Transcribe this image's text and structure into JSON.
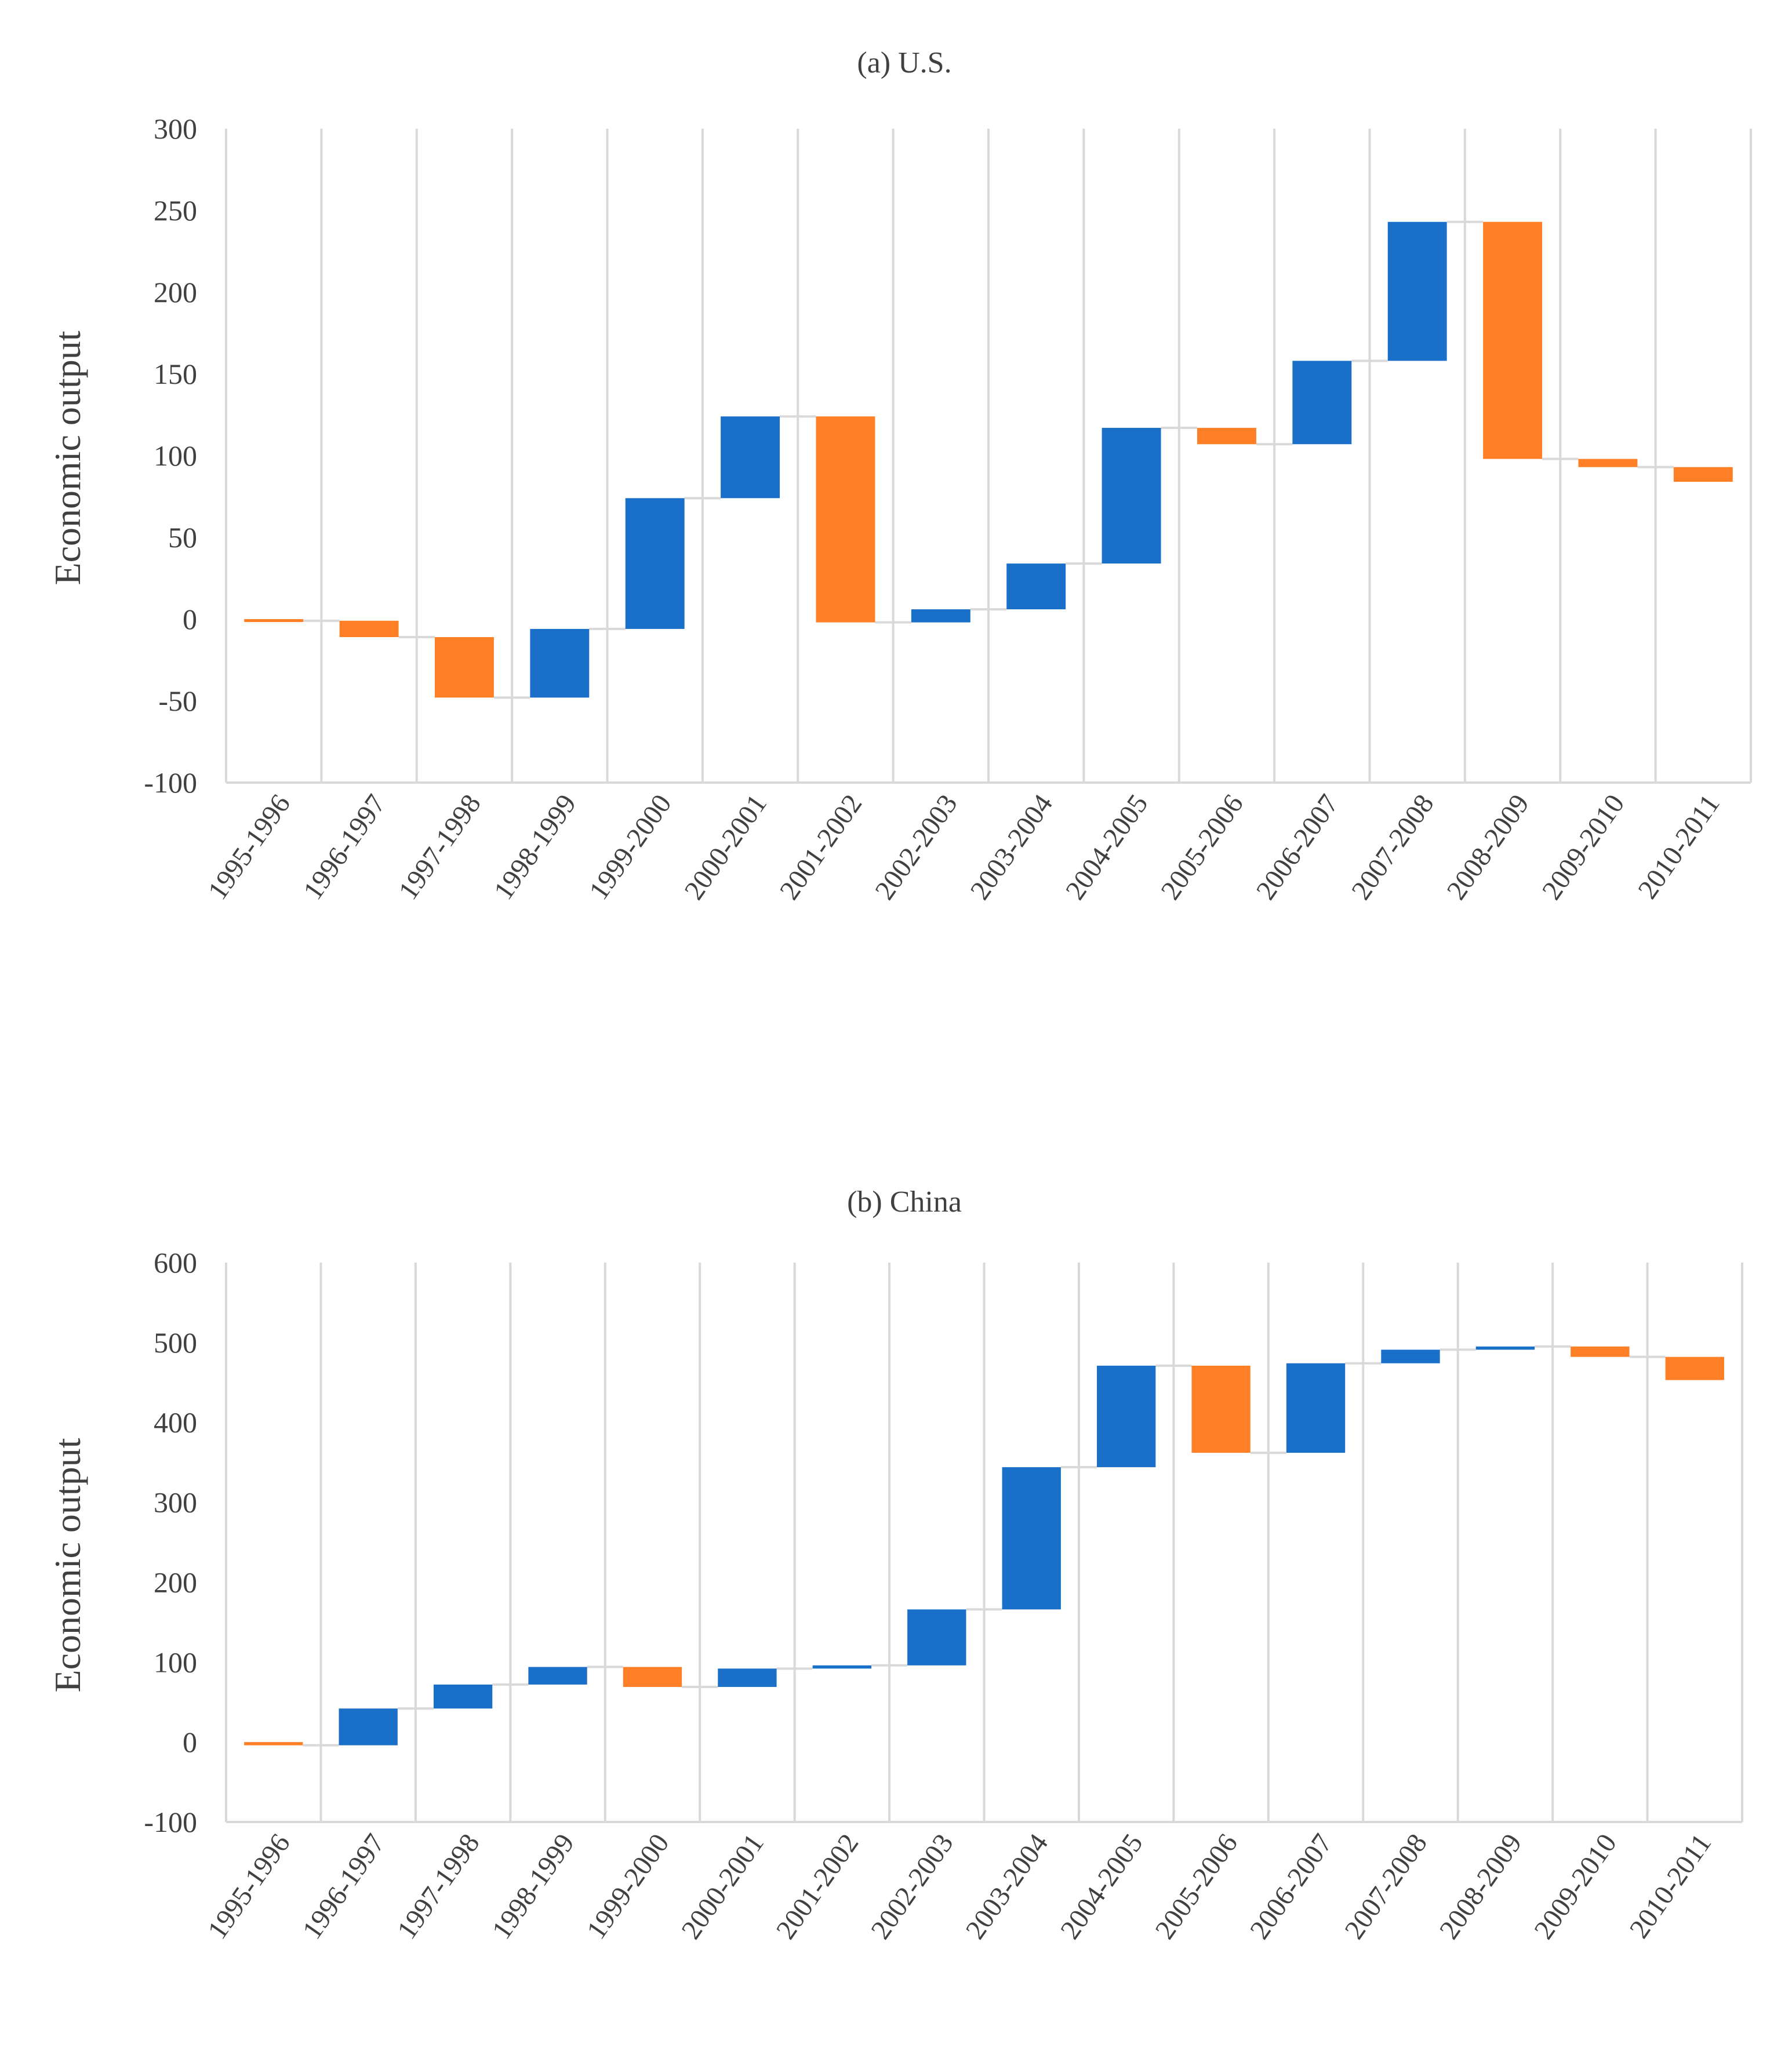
{
  "chart_data": [
    {
      "type": "waterfall",
      "title": "(a) U.S.",
      "xlabel": "",
      "ylabel": "Economic output",
      "ylim": [
        -100,
        300
      ],
      "yticks": [
        300,
        250,
        200,
        150,
        100,
        50,
        0,
        -50,
        -100
      ],
      "categories": [
        "1995-1996",
        "1996-1997",
        "1997-1998",
        "1998-1999",
        "1999-2000",
        "2000-2001",
        "2001-2002",
        "2002-2003",
        "2003-2004",
        "2004-2005",
        "2005-2006",
        "2006-2007",
        "2007-2008",
        "2008-2009",
        "2009-2010",
        "2010-2011"
      ],
      "changes": [
        -1,
        -10,
        -37,
        42,
        80,
        50,
        -126,
        8,
        28,
        83,
        -10,
        51,
        85,
        -145,
        -5,
        -9
      ],
      "running_total": [
        -1,
        -11,
        -48,
        -6,
        74,
        124,
        -2,
        6,
        34,
        117,
        107,
        158,
        243,
        98,
        93,
        84
      ],
      "grid": true,
      "colors": {
        "increase": "#1a6fc9",
        "decrease": "#ff7f27",
        "grid": "#d9d9d9",
        "connector": "#d9d9d9",
        "text": "#404040"
      }
    },
    {
      "type": "waterfall",
      "title": "(b) China",
      "xlabel": "",
      "ylabel": "Economic output",
      "ylim": [
        -100,
        600
      ],
      "yticks": [
        600,
        500,
        400,
        300,
        200,
        100,
        0,
        -100
      ],
      "categories": [
        "1995-1996",
        "1996-1997",
        "1997-1998",
        "1998-1999",
        "1999-2000",
        "2000-2001",
        "2001-2002",
        "2002-2003",
        "2003-2004",
        "2004-2005",
        "2005-2006",
        "2006-2007",
        "2007-2008",
        "2008-2009",
        "2009-2010",
        "2010-2011"
      ],
      "changes": [
        -4,
        46,
        30,
        22,
        -25,
        23,
        4,
        70,
        178,
        127,
        -109,
        112,
        17,
        4,
        -13,
        -29
      ],
      "running_total": [
        -4,
        42,
        72,
        94,
        69,
        92,
        96,
        166,
        344,
        471,
        362,
        474,
        491,
        495,
        482,
        453
      ],
      "grid": true,
      "colors": {
        "increase": "#1a6fc9",
        "decrease": "#ff7f27",
        "grid": "#d9d9d9",
        "connector": "#d9d9d9",
        "text": "#404040"
      }
    }
  ]
}
